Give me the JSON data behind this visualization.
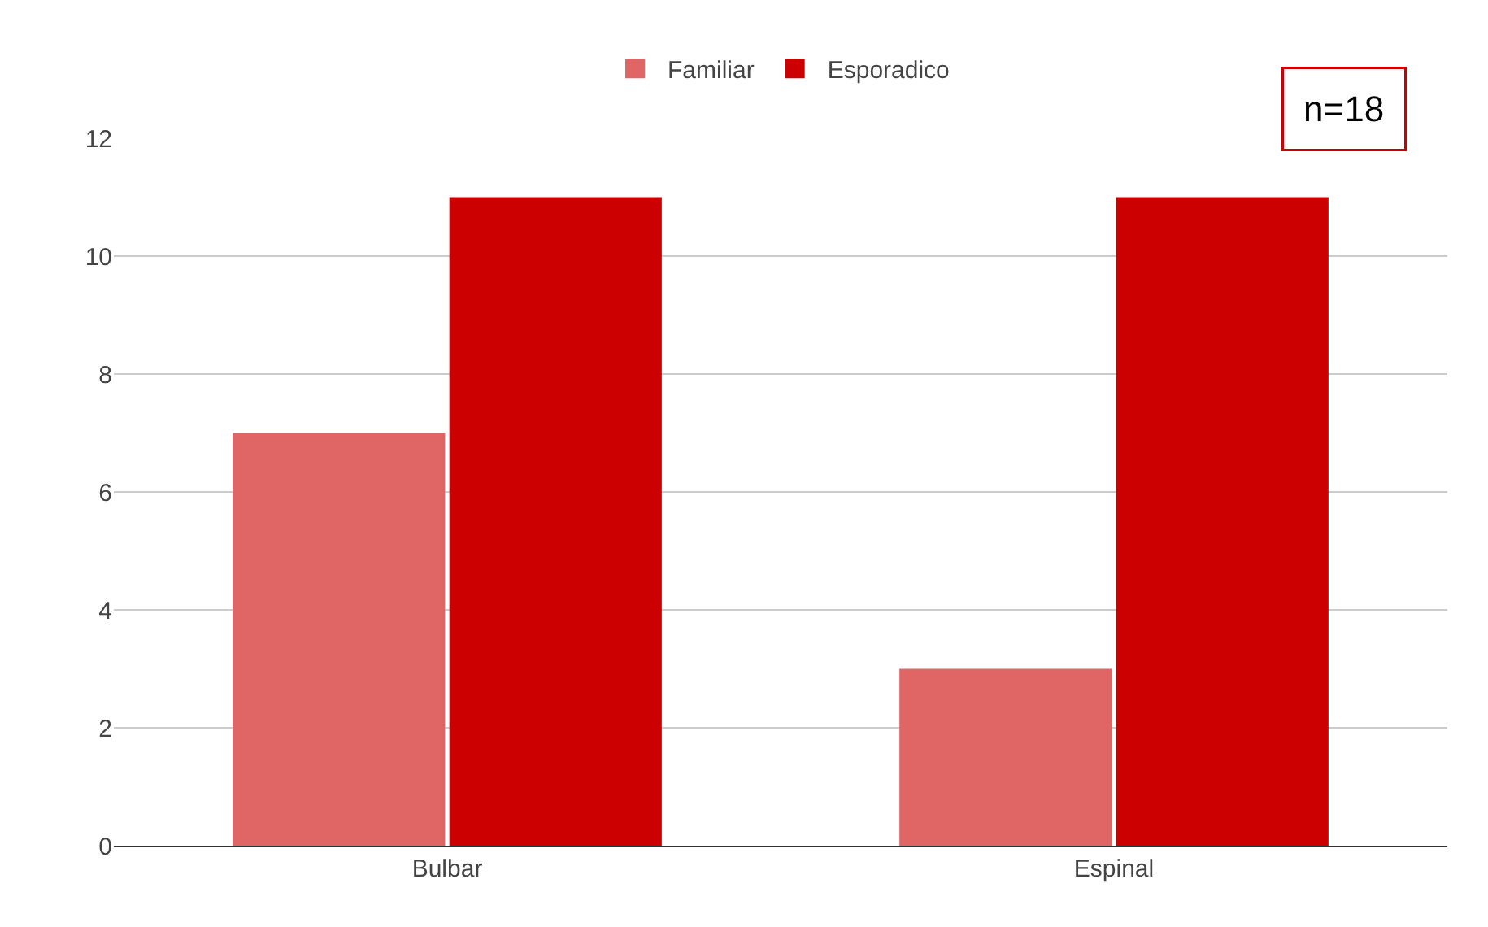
{
  "chart_data": {
    "type": "bar",
    "categories": [
      "Bulbar",
      "Espinal"
    ],
    "series": [
      {
        "name": "Familiar",
        "color": "#e06666",
        "values": [
          7,
          3
        ]
      },
      {
        "name": "Esporadico",
        "color": "#cc0000",
        "values": [
          11,
          11
        ]
      }
    ],
    "ylim": [
      0,
      12
    ],
    "yticks": [
      0,
      2,
      4,
      6,
      8,
      10,
      12
    ],
    "grid": "y",
    "legend": "top",
    "annotations": [
      "n=18"
    ]
  }
}
